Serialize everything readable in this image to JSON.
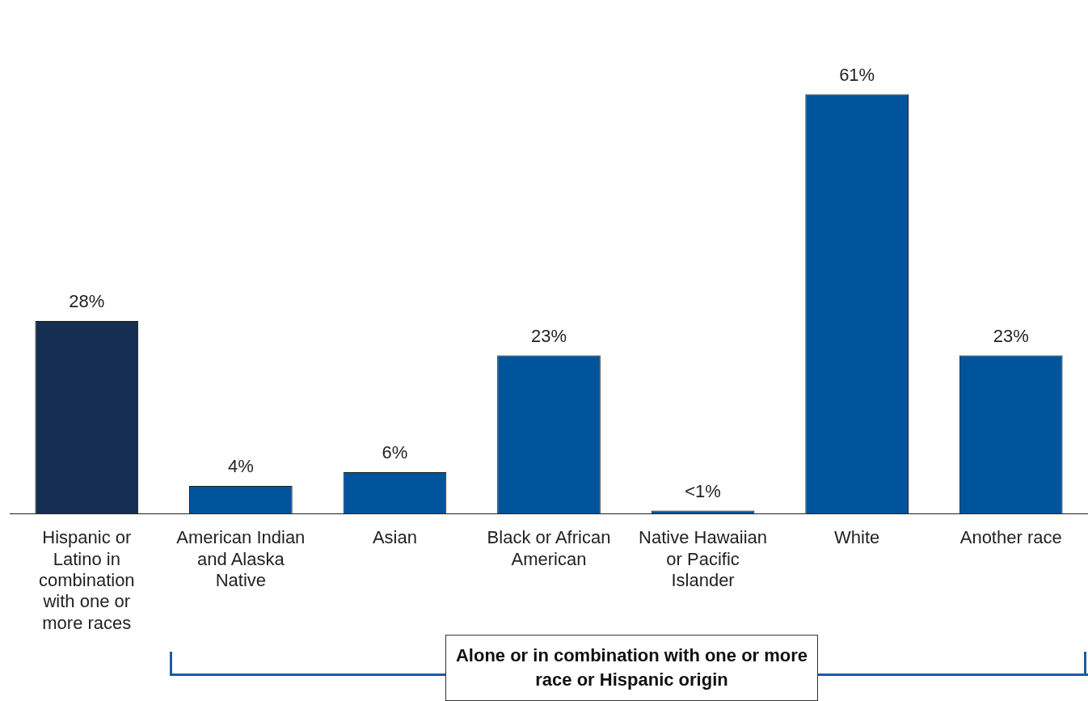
{
  "chart_data": {
    "type": "bar",
    "categories": [
      "Hispanic or Latino in combination with one or more races",
      "American Indian and Alaska Native",
      "Asian",
      "Black or African American",
      "Native Hawaiian or Pacific Islander",
      "White",
      "Another race"
    ],
    "values": [
      28,
      4,
      6,
      23,
      0.4,
      61,
      23
    ],
    "colors": [
      "#152e52",
      "#00549c",
      "#00549c",
      "#00549c",
      "#00549c",
      "#00549c",
      "#00549c"
    ],
    "value_labels": [
      "28%",
      "4%",
      "6%",
      "23%",
      "<1%",
      "61%",
      "23%"
    ],
    "grid": false,
    "legend": false,
    "annotations": [
      "Alone or in combination with one or more race or Hispanic origin"
    ]
  }
}
